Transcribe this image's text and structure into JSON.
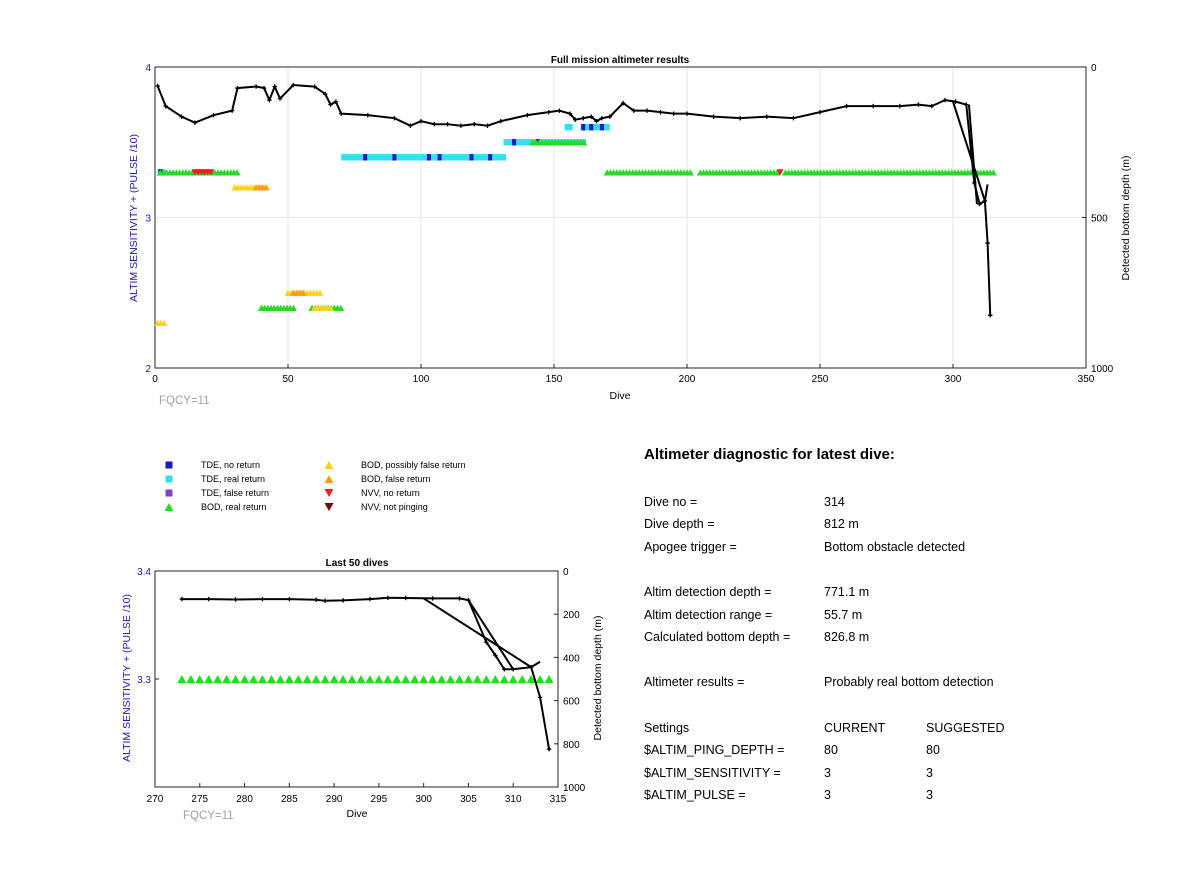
{
  "colors": {
    "tde_no_return": "#1a1ac8",
    "tde_real_return": "#33e0f0",
    "tde_false_return": "#8040d0",
    "bod_real_return": "#22dd22",
    "bod_possibly_false": "#ffd21e",
    "bod_false_return": "#ff9a1a",
    "nvv_no_return": "#e82020",
    "nvv_not_pinging": "#800000",
    "axis_blue": "#1a1ab4",
    "grid": "#e6e6e6",
    "fqcy_gray": "#a0a0a0"
  },
  "top_chart": {
    "title": "Full mission altimeter results",
    "xlabel": "Dive",
    "ylabel_left": "ALTIM SENSITIVITY + (PULSE /10)",
    "ylabel_right": "Detected bottom depth (m)",
    "footer": "FQCY=11",
    "x_ticks": [
      "0",
      "50",
      "100",
      "150",
      "200",
      "250",
      "300",
      "350"
    ],
    "y_ticks_left": [
      "2",
      "3",
      "4"
    ],
    "y_ticks_right": [
      "0",
      "500",
      "1000"
    ]
  },
  "bottom_chart": {
    "title": "Last 50 dives",
    "xlabel": "Dive",
    "ylabel_left": "ALTIM SENSITIVITY + (PULSE /10)",
    "ylabel_right": "Detected bottom depth (m)",
    "footer": "FQCY=11",
    "x_ticks": [
      "270",
      "275",
      "280",
      "285",
      "290",
      "295",
      "300",
      "305",
      "310",
      "315"
    ],
    "y_ticks_left": [
      "3.3",
      "3.4"
    ],
    "y_ticks_right": [
      "0",
      "200",
      "400",
      "600",
      "800",
      "1000"
    ]
  },
  "chart_data": [
    {
      "type": "scatter",
      "title": "Full mission altimeter results",
      "xlim": [
        0,
        350
      ],
      "ylim_left": [
        2,
        4
      ],
      "ylim_right": [
        1000,
        0
      ],
      "grid": true,
      "depth_series_points": [
        [
          1,
          63
        ],
        [
          4,
          130
        ],
        [
          10,
          165
        ],
        [
          15,
          185
        ],
        [
          22,
          160
        ],
        [
          29,
          145
        ],
        [
          31,
          70
        ],
        [
          38,
          65
        ],
        [
          41,
          70
        ],
        [
          43,
          110
        ],
        [
          45,
          65
        ],
        [
          47,
          105
        ],
        [
          52,
          60
        ],
        [
          60,
          65
        ],
        [
          64,
          90
        ],
        [
          66,
          125
        ],
        [
          68,
          115
        ],
        [
          70,
          155
        ],
        [
          80,
          160
        ],
        [
          90,
          170
        ],
        [
          96,
          195
        ],
        [
          100,
          180
        ],
        [
          105,
          190
        ],
        [
          110,
          190
        ],
        [
          115,
          195
        ],
        [
          120,
          190
        ],
        [
          125,
          195
        ],
        [
          130,
          180
        ],
        [
          140,
          160
        ],
        [
          148,
          150
        ],
        [
          152,
          145
        ],
        [
          156,
          155
        ],
        [
          158,
          175
        ],
        [
          161,
          170
        ],
        [
          164,
          165
        ],
        [
          166,
          180
        ],
        [
          168,
          170
        ],
        [
          171,
          165
        ],
        [
          176,
          120
        ],
        [
          180,
          145
        ],
        [
          185,
          145
        ],
        [
          190,
          150
        ],
        [
          195,
          155
        ],
        [
          200,
          155
        ],
        [
          210,
          165
        ],
        [
          220,
          170
        ],
        [
          230,
          165
        ],
        [
          240,
          170
        ],
        [
          250,
          150
        ],
        [
          260,
          130
        ],
        [
          270,
          130
        ],
        [
          280,
          130
        ],
        [
          287,
          125
        ],
        [
          292,
          130
        ],
        [
          297,
          110
        ],
        [
          301,
          115
        ],
        [
          305,
          125
        ],
        [
          308,
          385
        ],
        [
          310,
          455
        ],
        [
          312,
          445
        ],
        [
          313,
          585
        ],
        [
          314,
          825
        ]
      ],
      "depth_diagonals": [
        [
          [
            300,
            115
          ],
          [
            312,
            445
          ]
        ],
        [
          [
            306,
            125
          ],
          [
            309,
            455
          ]
        ],
        [
          [
            312,
            445
          ],
          [
            313,
            390
          ]
        ]
      ],
      "tde_real_bars": [
        [
          70,
          132,
          3.4
        ],
        [
          131,
          162,
          3.5
        ],
        [
          160,
          171,
          3.6
        ],
        [
          1,
          4,
          3.3
        ],
        [
          154,
          157,
          3.6
        ]
      ],
      "tde_no_return_dots": [
        [
          2,
          3.3
        ],
        [
          79,
          3.4
        ],
        [
          90,
          3.4
        ],
        [
          103,
          3.4
        ],
        [
          107,
          3.4
        ],
        [
          119,
          3.4
        ],
        [
          126,
          3.4
        ],
        [
          135,
          3.5
        ],
        [
          144,
          3.5
        ],
        [
          161,
          3.6
        ],
        [
          164,
          3.6
        ],
        [
          168,
          3.6
        ]
      ],
      "bod_real_bands": [
        [
          2,
          32,
          3.3
        ],
        [
          142,
          162,
          3.5
        ],
        [
          170,
          202,
          3.3
        ],
        [
          205,
          235,
          3.3
        ],
        [
          237,
          316,
          3.3
        ],
        [
          40,
          52,
          2.4
        ],
        [
          59,
          70,
          2.4
        ]
      ],
      "bod_possibly_false_bands": [
        [
          1,
          4,
          2.3
        ],
        [
          30,
          42,
          3.2
        ],
        [
          50,
          62,
          2.5
        ],
        [
          60,
          66,
          2.4
        ]
      ],
      "bod_false_bands": [
        [
          38,
          42,
          3.2
        ],
        [
          52,
          56,
          2.5
        ]
      ],
      "nvv_no_return_bands": [
        [
          15,
          22,
          3.3
        ],
        [
          235,
          236,
          3.3
        ]
      ]
    },
    {
      "type": "scatter",
      "title": "Last 50 dives",
      "xlim": [
        270,
        315
      ],
      "ylim_left": [
        3.2,
        3.4
      ],
      "ylim_right": [
        1000,
        0
      ],
      "grid": false,
      "depth_series_points": [
        [
          273,
          130
        ],
        [
          276,
          130
        ],
        [
          279,
          132
        ],
        [
          282,
          130
        ],
        [
          285,
          130
        ],
        [
          288,
          133
        ],
        [
          289,
          138
        ],
        [
          291,
          136
        ],
        [
          294,
          130
        ],
        [
          296,
          124
        ],
        [
          298,
          125
        ],
        [
          301,
          127
        ],
        [
          304,
          127
        ],
        [
          305,
          135
        ],
        [
          307,
          330
        ],
        [
          308,
          390
        ],
        [
          309,
          455
        ],
        [
          310,
          455
        ],
        [
          312,
          445
        ],
        [
          313,
          585
        ],
        [
          314,
          825
        ]
      ],
      "depth_diagonals": [
        [
          [
            300,
            127
          ],
          [
            312,
            445
          ]
        ],
        [
          [
            305,
            135
          ],
          [
            310,
            455
          ]
        ],
        [
          [
            312,
            445
          ],
          [
            313,
            420
          ]
        ]
      ],
      "bod_real_x_range": [
        273,
        314
      ],
      "bod_real_y": 3.3
    }
  ],
  "legend": {
    "items": [
      {
        "label": "TDE, no return",
        "marker": "square",
        "color_key": "tde_no_return"
      },
      {
        "label": "TDE, real return",
        "marker": "square",
        "color_key": "tde_real_return"
      },
      {
        "label": "TDE, false return",
        "marker": "square",
        "color_key": "tde_false_return"
      },
      {
        "label": "BOD, real return",
        "marker": "triangle-up",
        "color_key": "bod_real_return"
      },
      {
        "label": "BOD, possibly false return",
        "marker": "triangle-up",
        "color_key": "bod_possibly_false"
      },
      {
        "label": "BOD, false return",
        "marker": "triangle-up",
        "color_key": "bod_false_return"
      },
      {
        "label": "NVV, no return",
        "marker": "triangle-down",
        "color_key": "nvv_no_return"
      },
      {
        "label": "NVV, not pinging",
        "marker": "triangle-down",
        "color_key": "nvv_not_pinging"
      }
    ]
  },
  "diagnostic": {
    "title": "Altimeter diagnostic for latest dive:",
    "dive_no_label": "Dive no =",
    "dive_no_value": "314",
    "dive_depth_label": "Dive depth =",
    "dive_depth_value": "812 m",
    "apogee_label": "Apogee trigger =",
    "apogee_value": "Bottom obstacle detected",
    "detect_depth_label": "Altim detection depth =",
    "detect_depth_value": "771.1 m",
    "detect_range_label": "Altim detection range =",
    "detect_range_value": "55.7 m",
    "calc_depth_label": "Calculated bottom depth =",
    "calc_depth_value": "826.8 m",
    "results_label": "Altimeter results =",
    "results_value": "Probably real bottom detection",
    "settings_label": "Settings",
    "current_label": "CURRENT",
    "suggested_label": "SUGGESTED",
    "ping_depth_label": "$ALTIM_PING_DEPTH =",
    "ping_depth_current": "80",
    "ping_depth_suggested": "80",
    "sensitivity_label": "$ALTIM_SENSITIVITY =",
    "sensitivity_current": "3",
    "sensitivity_suggested": "3",
    "pulse_label": "$ALTIM_PULSE =",
    "pulse_current": "3",
    "pulse_suggested": "3"
  }
}
